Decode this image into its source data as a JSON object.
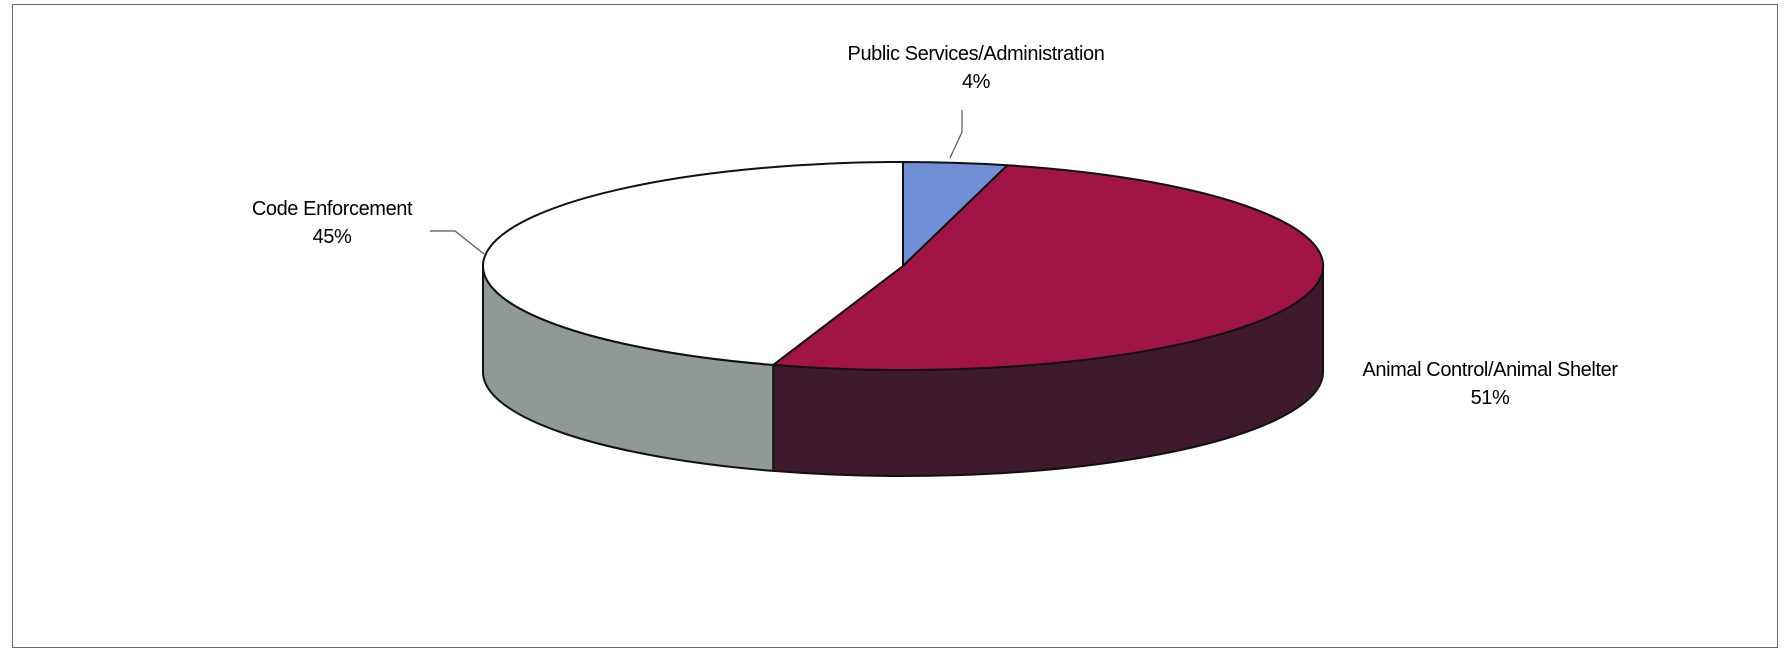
{
  "chart_data": {
    "type": "pie",
    "style": "3d",
    "slices": [
      {
        "label": "Public Services/Administration",
        "value": 4,
        "value_label": "4%",
        "color": "#6f8fd6",
        "side_color": "#4f6aa8"
      },
      {
        "label": "Animal Control/Animal Shelter",
        "value": 51,
        "value_label": "51%",
        "color": "#a01545",
        "side_color": "#3f1a2c"
      },
      {
        "label": "Code Enforcement",
        "value": 45,
        "value_label": "45%",
        "color": "#ffffff",
        "side_color": "#8e9a93"
      }
    ],
    "legend": "none",
    "labels": "outside with leader lines"
  }
}
